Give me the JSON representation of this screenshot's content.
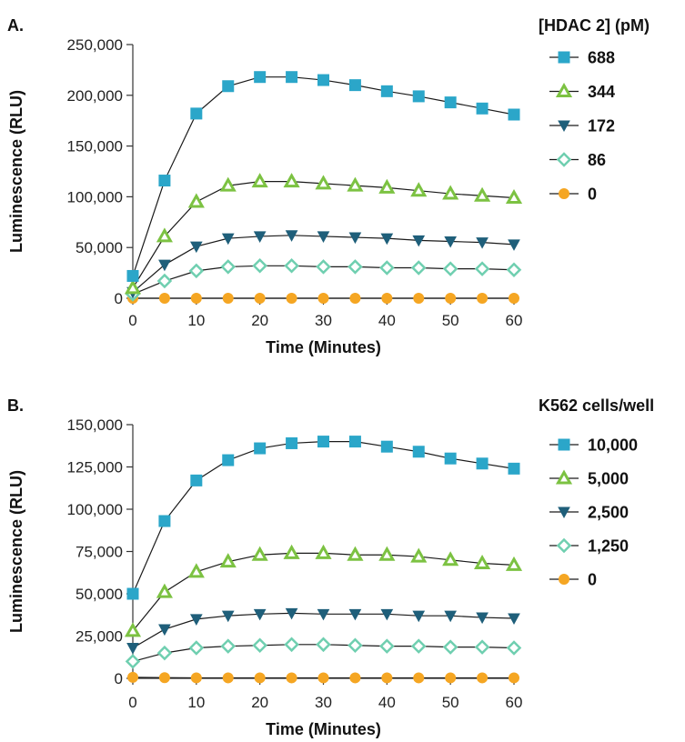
{
  "chart_data": [
    {
      "type": "line",
      "panel": "A.",
      "title": "",
      "xlabel": "Time (Minutes)",
      "ylabel": "Luminescence (RLU)",
      "xlim": [
        0,
        60
      ],
      "ylim": [
        0,
        250000
      ],
      "xticks": [
        0,
        10,
        20,
        30,
        40,
        50,
        60
      ],
      "xtick_labels": [
        "0",
        "10",
        "20",
        "30",
        "40",
        "50",
        "60"
      ],
      "yticks": [
        0,
        50000,
        100000,
        150000,
        200000,
        250000
      ],
      "ytick_labels": [
        "0",
        "50,000",
        "100,000",
        "150,000",
        "200,000",
        "250,000"
      ],
      "grid": false,
      "legend_title": "[HDAC 2] (pM)",
      "legend_position": "right",
      "x": [
        0,
        5,
        10,
        15,
        20,
        25,
        30,
        35,
        40,
        45,
        50,
        55,
        60
      ],
      "series": [
        {
          "name": "688",
          "marker": "square",
          "color": "#2ba6c9",
          "values": [
            22000,
            116000,
            182000,
            209000,
            218000,
            218000,
            215000,
            210000,
            204000,
            199000,
            193000,
            187000,
            181000
          ]
        },
        {
          "name": "344",
          "marker": "triangle-up",
          "color": "#7cc242",
          "values": [
            10000,
            61000,
            95000,
            111000,
            115000,
            115000,
            113000,
            111000,
            109000,
            106000,
            103000,
            101000,
            99000
          ]
        },
        {
          "name": "172",
          "marker": "triangle-down",
          "color": "#1f5f7a",
          "values": [
            6000,
            33000,
            51000,
            59000,
            61000,
            62000,
            61000,
            60000,
            59000,
            57000,
            56000,
            55000,
            53000
          ]
        },
        {
          "name": "86",
          "marker": "diamond",
          "color": "#6fcfb0",
          "values": [
            4000,
            17000,
            27000,
            31000,
            32000,
            32000,
            31000,
            31000,
            30000,
            30000,
            29000,
            29000,
            28000
          ]
        },
        {
          "name": "0",
          "marker": "circle",
          "color": "#f5a623",
          "values": [
            0,
            0,
            0,
            0,
            0,
            0,
            0,
            0,
            0,
            0,
            0,
            0,
            0
          ]
        }
      ]
    },
    {
      "type": "line",
      "panel": "B.",
      "title": "",
      "xlabel": "Time (Minutes)",
      "ylabel": "Luminescence (RLU)",
      "xlim": [
        0,
        60
      ],
      "ylim": [
        0,
        150000
      ],
      "xticks": [
        0,
        10,
        20,
        30,
        40,
        50,
        60
      ],
      "xtick_labels": [
        "0",
        "10",
        "20",
        "30",
        "40",
        "50",
        "60"
      ],
      "yticks": [
        0,
        25000,
        50000,
        75000,
        100000,
        125000,
        150000
      ],
      "ytick_labels": [
        "0",
        "25,000",
        "50,000",
        "75,000",
        "100,000",
        "125,000",
        "150,000"
      ],
      "grid": false,
      "legend_title": "K562 cells/well",
      "legend_position": "right",
      "x": [
        0,
        5,
        10,
        15,
        20,
        25,
        30,
        35,
        40,
        45,
        50,
        55,
        60
      ],
      "series": [
        {
          "name": "10,000",
          "marker": "square",
          "color": "#2ba6c9",
          "values": [
            50000,
            93000,
            117000,
            129000,
            136000,
            139000,
            140000,
            140000,
            137000,
            134000,
            130000,
            127000,
            124000
          ]
        },
        {
          "name": "5,000",
          "marker": "triangle-up",
          "color": "#7cc242",
          "values": [
            28000,
            51000,
            63000,
            69000,
            73000,
            74000,
            74000,
            73000,
            73000,
            72000,
            70000,
            68000,
            67000
          ]
        },
        {
          "name": "2,500",
          "marker": "triangle-down",
          "color": "#1f5f7a",
          "values": [
            18000,
            29000,
            35000,
            37000,
            38000,
            38500,
            38000,
            38000,
            38000,
            37000,
            37000,
            36000,
            35500
          ]
        },
        {
          "name": "1,250",
          "marker": "diamond",
          "color": "#6fcfb0",
          "values": [
            10000,
            15000,
            18000,
            19000,
            19500,
            20000,
            20000,
            19500,
            19000,
            19000,
            18500,
            18500,
            18000
          ]
        },
        {
          "name": "0",
          "marker": "circle",
          "color": "#f5a623",
          "values": [
            600,
            400,
            300,
            300,
            300,
            300,
            300,
            300,
            300,
            300,
            300,
            300,
            300
          ]
        }
      ]
    }
  ]
}
